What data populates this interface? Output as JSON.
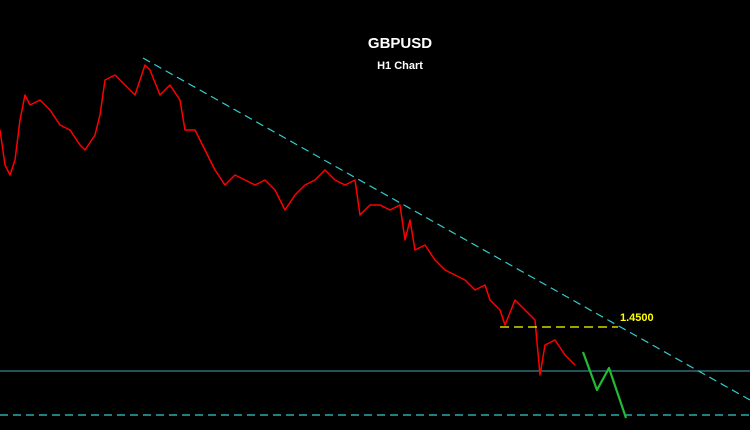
{
  "chart_data": {
    "type": "line",
    "title": "GBPUSD",
    "subtitle": "H1 Chart",
    "xlim": [
      0,
      750
    ],
    "ylim": [
      1.4397,
      1.4827
    ],
    "series": [
      {
        "color": "#ff0000",
        "x": [
          0,
          5,
          10,
          15,
          20,
          25,
          30,
          40,
          50,
          60,
          70,
          80,
          85,
          95,
          100,
          105,
          115,
          125,
          135,
          140,
          145,
          150,
          160,
          170,
          180,
          185,
          195,
          205,
          215,
          225,
          235,
          245,
          255,
          265,
          275,
          285,
          295,
          305,
          315,
          325,
          335,
          345,
          355,
          360,
          370,
          380,
          390,
          400,
          405,
          410,
          415,
          425,
          435,
          445,
          455,
          465,
          475,
          485,
          490,
          500,
          505,
          515,
          525,
          535,
          540,
          545,
          555,
          565,
          575
        ],
        "values": [
          1.4697,
          1.4662,
          1.4652,
          1.4667,
          1.4707,
          1.4732,
          1.4722,
          1.4727,
          1.4717,
          1.4702,
          1.4697,
          1.4682,
          1.4677,
          1.4692,
          1.4712,
          1.4747,
          1.4752,
          1.4742,
          1.4732,
          1.4747,
          1.4762,
          1.4757,
          1.4732,
          1.4742,
          1.4727,
          1.4697,
          1.4697,
          1.4677,
          1.4657,
          1.4642,
          1.4652,
          1.4647,
          1.4642,
          1.4647,
          1.4637,
          1.4617,
          1.4632,
          1.4642,
          1.4647,
          1.4657,
          1.4647,
          1.4642,
          1.4647,
          1.4612,
          1.4622,
          1.4622,
          1.4617,
          1.4622,
          1.4587,
          1.4607,
          1.4577,
          1.4582,
          1.4567,
          1.4557,
          1.4552,
          1.4547,
          1.4537,
          1.4542,
          1.4527,
          1.4517,
          1.4502,
          1.4527,
          1.4517,
          1.4507,
          1.4452,
          1.4482,
          1.4487,
          1.4472,
          1.4462
        ]
      },
      {
        "color": "#22bb33",
        "x": [
          583,
          597,
          609,
          626
        ],
        "values": [
          1.4475,
          1.4437,
          1.4459,
          1.4409
        ]
      }
    ],
    "trendline": {
      "color": "#33cccc",
      "x": [
        143,
        750
      ],
      "values": [
        1.4769,
        1.4427
      ]
    },
    "resistance": {
      "value": 1.45,
      "label": "1.4500",
      "color": "#ffff00",
      "x": [
        500,
        618
      ]
    },
    "support": {
      "value": 1.4456,
      "color": "#4aa3b5"
    },
    "target": {
      "value": 1.4412,
      "color": "#33cccc"
    }
  }
}
